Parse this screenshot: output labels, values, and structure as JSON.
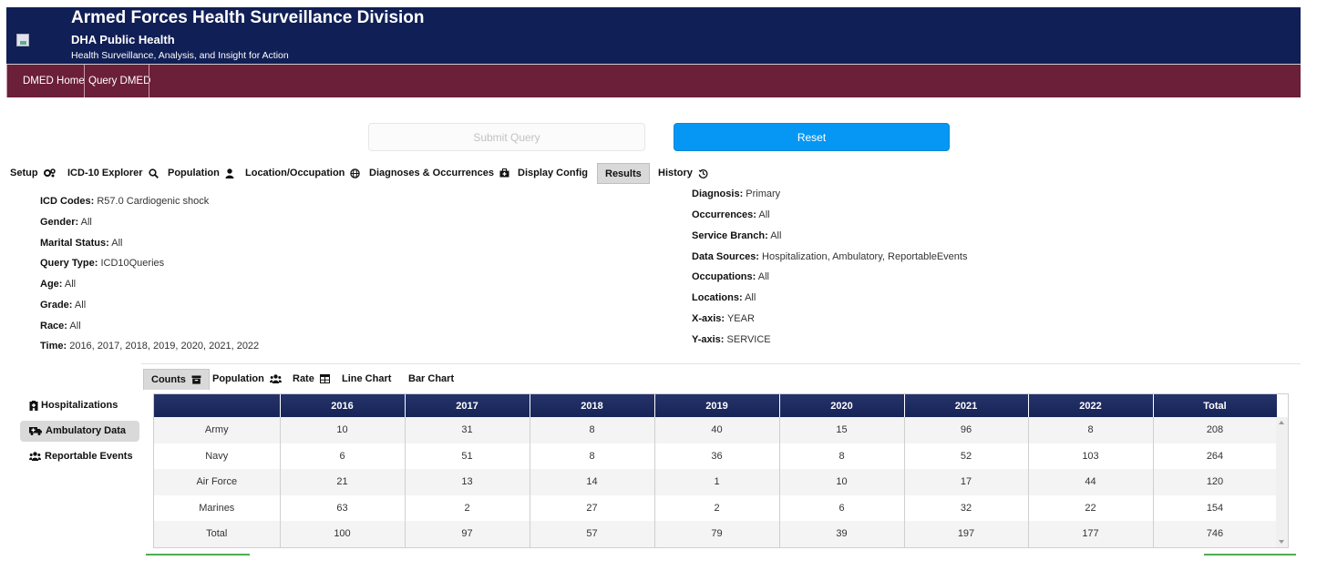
{
  "header": {
    "title": "Armed Forces Health Surveillance Division",
    "subtitle": "DHA Public Health",
    "tagline": "Health Surveillance, Analysis, and Insight for Action"
  },
  "nav": {
    "items": [
      {
        "label": "DMED Home"
      },
      {
        "label": "Query DMED"
      }
    ]
  },
  "actions": {
    "submit_label": "Submit Query",
    "reset_label": "Reset"
  },
  "query_tabs": [
    {
      "label": "Setup",
      "icon": "gears-icon"
    },
    {
      "label": "ICD-10 Explorer",
      "icon": "search-icon"
    },
    {
      "label": "Population",
      "icon": "user-icon"
    },
    {
      "label": "Location/Occupation",
      "icon": "globe-icon"
    },
    {
      "label": "Diagnoses & Occurrences",
      "icon": "medical-bag-icon"
    },
    {
      "label": "Display Config",
      "icon": ""
    },
    {
      "label": "Results",
      "icon": "",
      "active": true
    },
    {
      "label": "History",
      "icon": "history-icon"
    }
  ],
  "summary_left": [
    {
      "key": "ICD Codes:",
      "value": "R57.0 Cardiogenic shock"
    },
    {
      "key": "Gender:",
      "value": "All"
    },
    {
      "key": "Marital Status:",
      "value": "All"
    },
    {
      "key": "Query Type:",
      "value": "ICD10Queries"
    },
    {
      "key": "Age:",
      "value": "All"
    },
    {
      "key": "Grade:",
      "value": "All"
    },
    {
      "key": "Race:",
      "value": "All"
    },
    {
      "key": "Time:",
      "value": "2016, 2017, 2018, 2019, 2020, 2021, 2022"
    }
  ],
  "summary_right": [
    {
      "key": "Diagnosis:",
      "value": "Primary"
    },
    {
      "key": "Occurrences:",
      "value": "All"
    },
    {
      "key": "Service Branch:",
      "value": "All"
    },
    {
      "key": "Data Sources:",
      "value": "Hospitalization, Ambulatory, ReportableEvents"
    },
    {
      "key": "Occupations:",
      "value": "All"
    },
    {
      "key": "Locations:",
      "value": "All"
    },
    {
      "key": "X-axis:",
      "value": "YEAR"
    },
    {
      "key": "Y-axis:",
      "value": "SERVICE"
    }
  ],
  "result_tabs": [
    {
      "label": "Counts",
      "icon": "archive-icon",
      "active": true
    },
    {
      "label": "Population",
      "icon": "users-icon"
    },
    {
      "label": "Rate",
      "icon": "table-icon"
    },
    {
      "label": "Line Chart",
      "icon": ""
    },
    {
      "label": "Bar Chart",
      "icon": ""
    }
  ],
  "data_sources": [
    {
      "label": "Hospitalizations",
      "icon": "hospital-icon"
    },
    {
      "label": "Ambulatory Data",
      "icon": "ambulance-icon",
      "active": true
    },
    {
      "label": "Reportable Events",
      "icon": "users-icon"
    }
  ],
  "table": {
    "columns": [
      "",
      "2016",
      "2017",
      "2018",
      "2019",
      "2020",
      "2021",
      "2022",
      "Total"
    ],
    "rows": [
      [
        "Army",
        "10",
        "31",
        "8",
        "40",
        "15",
        "96",
        "8",
        "208"
      ],
      [
        "Navy",
        "6",
        "51",
        "8",
        "36",
        "8",
        "52",
        "103",
        "264"
      ],
      [
        "Air Force",
        "21",
        "13",
        "14",
        "1",
        "10",
        "17",
        "44",
        "120"
      ],
      [
        "Marines",
        "63",
        "2",
        "27",
        "2",
        "6",
        "32",
        "22",
        "154"
      ],
      [
        "Total",
        "100",
        "97",
        "57",
        "79",
        "39",
        "197",
        "177",
        "746"
      ]
    ]
  },
  "colors": {
    "header_bg": "#101f55",
    "nav_bg": "#6b1f39",
    "reset_bg": "#0597f3",
    "table_header_bg": "#172457"
  }
}
